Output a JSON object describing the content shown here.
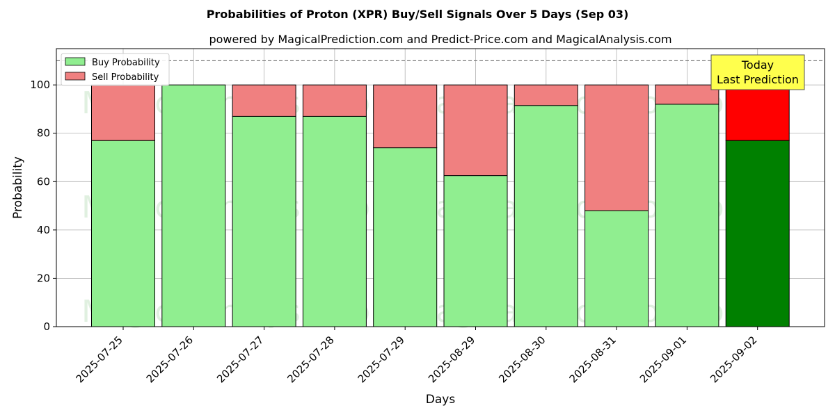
{
  "chart_data": {
    "type": "bar",
    "stacked": true,
    "title": "Probabilities of Proton (XPR) Buy/Sell Signals Over 5 Days (Sep 03)",
    "subtitle": "powered by MagicalPrediction.com and Predict-Price.com and MagicalAnalysis.com",
    "xlabel": "Days",
    "ylabel": "Probability",
    "ylim": [
      0,
      115
    ],
    "yticks": [
      0,
      20,
      40,
      60,
      80,
      100
    ],
    "grid": true,
    "reference_line": 110,
    "legend_position": "top-left",
    "categories": [
      "2025-07-25",
      "2025-07-26",
      "2025-07-27",
      "2025-07-28",
      "2025-07-29",
      "2025-08-29",
      "2025-08-30",
      "2025-08-31",
      "2025-09-01",
      "2025-09-02"
    ],
    "series": [
      {
        "name": "Buy Probability",
        "color": "#90ee90",
        "highlight_color": "#008000",
        "values": [
          77,
          100,
          87,
          87,
          74,
          62.5,
          91.5,
          48,
          92,
          77
        ]
      },
      {
        "name": "Sell Probability",
        "color": "#f08080",
        "highlight_color": "#ff0000",
        "values": [
          23,
          0,
          13,
          13,
          26,
          37.5,
          8.5,
          52,
          8,
          23
        ]
      }
    ],
    "highlight_index": 9,
    "annotation": {
      "lines": [
        "Today",
        "Last Prediction"
      ],
      "category": "2025-09-02",
      "background": "#ffff4d"
    },
    "watermarks": [
      "MagicalAnalysis.com",
      "MagicalPrediction.com",
      "MagicalAnalysis.com",
      "MagicalPrediction.com",
      "MagicalAnalysis.com",
      "MagicalPrediction.com"
    ]
  }
}
